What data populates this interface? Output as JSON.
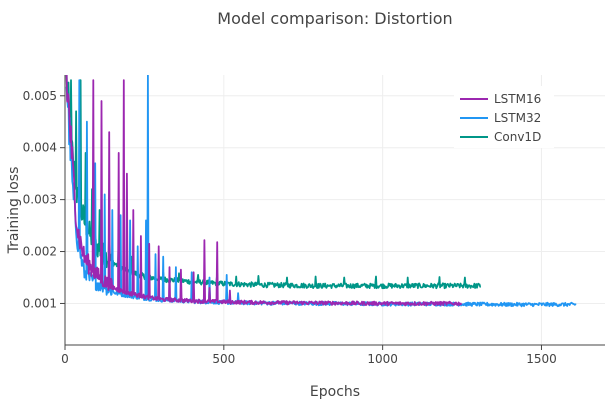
{
  "chart_data": {
    "type": "line",
    "title": "Model comparison: Distortion",
    "xlabel": "Epochs",
    "ylabel": "Training loss",
    "xlim": [
      0,
      1700
    ],
    "ylim": [
      0.0002,
      0.0054
    ],
    "x_ticks": [
      0,
      500,
      1000,
      1500
    ],
    "y_ticks": [
      0.001,
      0.002,
      0.003,
      0.004,
      0.005
    ],
    "x_tick_labels": [
      "0",
      "500",
      "1000",
      "1500"
    ],
    "y_tick_labels": [
      "0.001",
      "0.002",
      "0.003",
      "0.004",
      "0.005"
    ],
    "grid": true,
    "legend_position": "top-right",
    "series": [
      {
        "name": "LSTM16",
        "color": "#9c27b0",
        "x": [
          5,
          15,
          25,
          40,
          60,
          80,
          100,
          130,
          160,
          200,
          250,
          300,
          400,
          500,
          600,
          800,
          1000,
          1200,
          1250
        ],
        "values": [
          0.0053,
          0.0045,
          0.0035,
          0.0024,
          0.0019,
          0.0017,
          0.00155,
          0.0014,
          0.00128,
          0.0012,
          0.00113,
          0.00108,
          0.00105,
          0.00103,
          0.00102,
          0.00101,
          0.001,
          0.001,
          0.001
        ],
        "spikes": [
          [
            90,
            0.0053
          ],
          [
            115,
            0.0049
          ],
          [
            140,
            0.0043
          ],
          [
            170,
            0.0039
          ],
          [
            185,
            0.0053
          ],
          [
            195,
            0.0035
          ],
          [
            215,
            0.0028
          ],
          [
            240,
            0.0023
          ],
          [
            265,
            0.00215
          ],
          [
            295,
            0.0021
          ],
          [
            330,
            0.0017
          ],
          [
            365,
            0.00165
          ],
          [
            405,
            0.0016
          ],
          [
            440,
            0.00222
          ],
          [
            455,
            0.0013
          ],
          [
            480,
            0.00218
          ],
          [
            520,
            0.00125
          ]
        ]
      },
      {
        "name": "LSTM32",
        "color": "#2196f3",
        "x": [
          5,
          15,
          25,
          40,
          60,
          80,
          100,
          130,
          160,
          200,
          250,
          300,
          400,
          500,
          600,
          800,
          1000,
          1200,
          1400,
          1610
        ],
        "values": [
          0.0053,
          0.0042,
          0.0031,
          0.0022,
          0.0016,
          0.00145,
          0.0014,
          0.0013,
          0.0012,
          0.00115,
          0.0011,
          0.00107,
          0.00104,
          0.00102,
          0.00101,
          0.001,
          0.00099,
          0.00099,
          0.00098,
          0.00098
        ],
        "spikes": [
          [
            45,
            0.0053
          ],
          [
            70,
            0.0045
          ],
          [
            95,
            0.0037
          ],
          [
            125,
            0.0031
          ],
          [
            150,
            0.0028
          ],
          [
            175,
            0.0027
          ],
          [
            205,
            0.0026
          ],
          [
            230,
            0.0021
          ],
          [
            255,
            0.0026
          ],
          [
            262,
            0.0054
          ],
          [
            285,
            0.00195
          ],
          [
            310,
            0.0019
          ],
          [
            350,
            0.0017
          ],
          [
            400,
            0.0016
          ],
          [
            455,
            0.0015
          ],
          [
            510,
            0.00155
          ],
          [
            545,
            0.0012
          ]
        ]
      },
      {
        "name": "Conv1D",
        "color": "#009688",
        "x": [
          5,
          15,
          25,
          40,
          60,
          80,
          100,
          130,
          160,
          200,
          250,
          300,
          400,
          500,
          600,
          800,
          1000,
          1200,
          1310
        ],
        "values": [
          0.0053,
          0.0044,
          0.0037,
          0.003,
          0.0026,
          0.0023,
          0.0021,
          0.0019,
          0.00175,
          0.00162,
          0.00152,
          0.00147,
          0.00142,
          0.00138,
          0.00136,
          0.00134,
          0.00134,
          0.00134,
          0.00134
        ],
        "spikes": [
          [
            20,
            0.0053
          ],
          [
            35,
            0.0047
          ],
          [
            50,
            0.0053
          ],
          [
            65,
            0.0039
          ],
          [
            85,
            0.0032
          ],
          [
            110,
            0.0028
          ],
          [
            140,
            0.0025
          ],
          [
            170,
            0.0022
          ],
          [
            210,
            0.0019
          ],
          [
            260,
            0.0017
          ],
          [
            310,
            0.0016
          ],
          [
            360,
            0.00158
          ],
          [
            420,
            0.00155
          ],
          [
            480,
            0.00158
          ],
          [
            540,
            0.00152
          ],
          [
            610,
            0.00153
          ],
          [
            700,
            0.0015
          ],
          [
            790,
            0.00152
          ],
          [
            880,
            0.0015
          ],
          [
            980,
            0.00152
          ],
          [
            1080,
            0.0015
          ],
          [
            1180,
            0.00151
          ],
          [
            1260,
            0.0015
          ]
        ]
      }
    ]
  }
}
